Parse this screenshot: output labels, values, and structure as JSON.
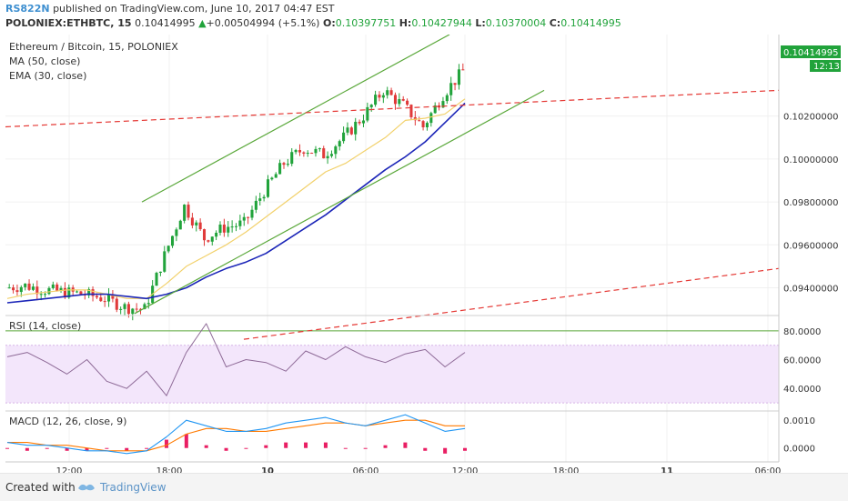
{
  "header": {
    "author": "RS822N",
    "published_text": "published on TradingView.com, June 10, 2017 04:47 EST",
    "symbol": "POLONIEX:ETHBTC, 15",
    "price": "0.10414995",
    "change_arrow": "▲",
    "change": "+0.00504994 (+5.1%)",
    "o_label": "O:",
    "o_value": "0.10397751",
    "h_label": "H:",
    "h_value": "0.10427944",
    "l_label": "L:",
    "l_value": "0.10370004",
    "c_label": "C:",
    "c_value": "0.10414995"
  },
  "legend": {
    "title": "Ethereum / Bitcoin, 15, POLONIEX",
    "ma": "MA (50, close)",
    "ema": "EMA (30, close)",
    "rsi": "RSI (14, close)",
    "macd": "MACD (12, 26, close, 9)"
  },
  "price_badge": {
    "value": "0.10414995",
    "timer": "12:13"
  },
  "colors": {
    "up": "#21a33b",
    "down": "#e03a3a",
    "ma": "#1c26b8",
    "ema": "#f2d16b",
    "channel": "#5aa83a",
    "dashed": "#e53935",
    "rsi": "#8e6a97",
    "rsi_band": "#f3e6fb",
    "macd": "#2196f3",
    "signal": "#ff7a00",
    "hist": "#e91e63"
  },
  "footer": {
    "created": "Created with",
    "brand": "TradingView"
  },
  "chart_data": [
    {
      "type": "candlestick",
      "title": "Ethereum / Bitcoin, 15, POLONIEX",
      "x_ticks": [
        "12:00",
        "18:00",
        "10",
        "06:00",
        "12:00",
        "18:00",
        "11",
        "06:00"
      ],
      "y_ticks": [
        "0.10200000",
        "0.10000000",
        "0.09800000",
        "0.09600000",
        "0.09400000"
      ],
      "ylim": [
        0.09275,
        0.1058
      ],
      "last_price": 0.10414995,
      "series": [
        {
          "name": "MA (50, close)",
          "values": [
            0.0933,
            0.0934,
            0.0935,
            0.0936,
            0.0937,
            0.0937,
            0.0936,
            0.0935,
            0.0937,
            0.094,
            0.0945,
            0.0949,
            0.0952,
            0.0956,
            0.0962,
            0.0968,
            0.0974,
            0.0981,
            0.0988,
            0.0995,
            0.1001,
            0.1008,
            0.1017,
            0.1026
          ]
        },
        {
          "name": "EMA (30, close)",
          "values": [
            0.0935,
            0.0937,
            0.0938,
            0.0939,
            0.0939,
            0.0937,
            0.0935,
            0.0935,
            0.0942,
            0.095,
            0.0955,
            0.096,
            0.0966,
            0.0973,
            0.098,
            0.0987,
            0.0994,
            0.0998,
            0.1004,
            0.101,
            0.1018,
            0.1019,
            0.1021,
            0.1028
          ]
        },
        {
          "name": "Close",
          "values": [
            0.094,
            0.0941,
            0.0939,
            0.0938,
            0.0937,
            0.0935,
            0.0931,
            0.093,
            0.0955,
            0.0978,
            0.0963,
            0.0968,
            0.097,
            0.0985,
            0.0998,
            0.1005,
            0.1002,
            0.101,
            0.102,
            0.1032,
            0.1025,
            0.1015,
            0.103,
            0.1041
          ]
        }
      ],
      "channel_upper": [
        [
          0.098,
          0.1058
        ]
      ],
      "channel_lower": [
        [
          0.0928,
          0.1032
        ]
      ],
      "dashed_upper": [
        [
          0.1015,
          0.1032
        ]
      ],
      "dashed_lower": [
        [
          0.0916,
          0.0949
        ]
      ]
    },
    {
      "type": "line",
      "title": "RSI (14, close)",
      "y_ticks": [
        "80.0000",
        "60.0000",
        "40.0000"
      ],
      "ylim": [
        25,
        90
      ],
      "bands": [
        30,
        70
      ],
      "values": [
        62,
        65,
        58,
        50,
        60,
        45,
        40,
        52,
        35,
        65,
        85,
        55,
        60,
        58,
        52,
        66,
        60,
        69,
        62,
        58,
        64,
        67,
        55,
        65
      ]
    },
    {
      "type": "line",
      "title": "MACD (12, 26, close, 9)",
      "y_ticks": [
        "0.0010",
        "0.0000"
      ],
      "ylim": [
        -0.0005,
        0.0013
      ],
      "series": [
        {
          "name": "MACD",
          "values": [
            0.0002,
            0.0001,
            0.0001,
            0.0,
            -0.0001,
            -0.0001,
            -0.0002,
            -0.0001,
            0.0004,
            0.001,
            0.0008,
            0.0006,
            0.0006,
            0.0007,
            0.0009,
            0.001,
            0.0011,
            0.0009,
            0.0008,
            0.001,
            0.0012,
            0.0009,
            0.0006,
            0.0007
          ]
        },
        {
          "name": "Signal",
          "values": [
            0.0002,
            0.0002,
            0.0001,
            0.0001,
            0.0,
            -0.0001,
            -0.0001,
            -0.0001,
            0.0001,
            0.0005,
            0.0007,
            0.0007,
            0.0006,
            0.0006,
            0.0007,
            0.0008,
            0.0009,
            0.0009,
            0.0008,
            0.0009,
            0.001,
            0.001,
            0.0008,
            0.0008
          ]
        }
      ]
    }
  ]
}
